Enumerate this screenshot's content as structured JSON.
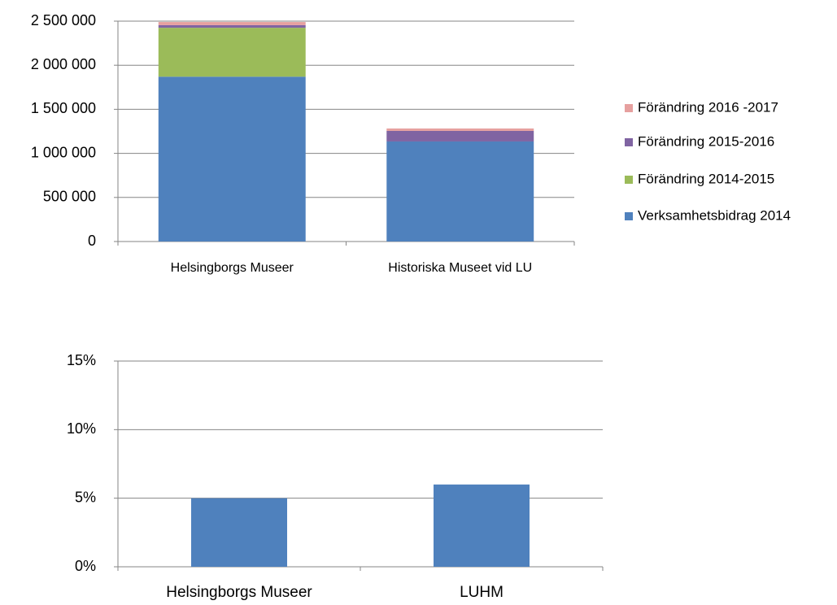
{
  "chart_data": [
    {
      "type": "stacked_bar",
      "categories": [
        "Helsingborgs Museer",
        "Historiska Museet vid LU"
      ],
      "series": [
        {
          "name": "Verksamhetsbidrag 2014",
          "color": "#4f81bd",
          "values": [
            1870000,
            1135000
          ]
        },
        {
          "name": "Förändring 2014-2015",
          "color": "#9bbb59",
          "values": [
            555000,
            0
          ]
        },
        {
          "name": "Förändring 2015-2016",
          "color": "#8064a2",
          "values": [
            30000,
            120000
          ]
        },
        {
          "name": "Förändring 2016 -2017",
          "color": "#e6a09f",
          "values": [
            35000,
            27000
          ]
        }
      ],
      "ylim": [
        0,
        2500000
      ],
      "yticks": [
        0,
        {
          "value": 500000,
          "label": "500 000"
        },
        {
          "value": 1000000,
          "label": "1 000 000"
        },
        {
          "value": 1500000,
          "label": "1 500 000"
        },
        {
          "value": 2000000,
          "label": "2 000 000"
        },
        {
          "value": 2500000,
          "label": "2 500 000"
        }
      ],
      "grid": true,
      "legend": "right"
    },
    {
      "type": "bar",
      "categories": [
        "Helsingborgs Museer",
        "LUHM"
      ],
      "values": [
        5,
        6
      ],
      "color": "#4f81bd",
      "ylim": [
        0,
        15
      ],
      "yticks": [
        {
          "value": 0,
          "label": "0%"
        },
        {
          "value": 5,
          "label": "5%"
        },
        {
          "value": 10,
          "label": "10%"
        },
        {
          "value": 15,
          "label": "15%"
        }
      ],
      "grid": true
    }
  ]
}
